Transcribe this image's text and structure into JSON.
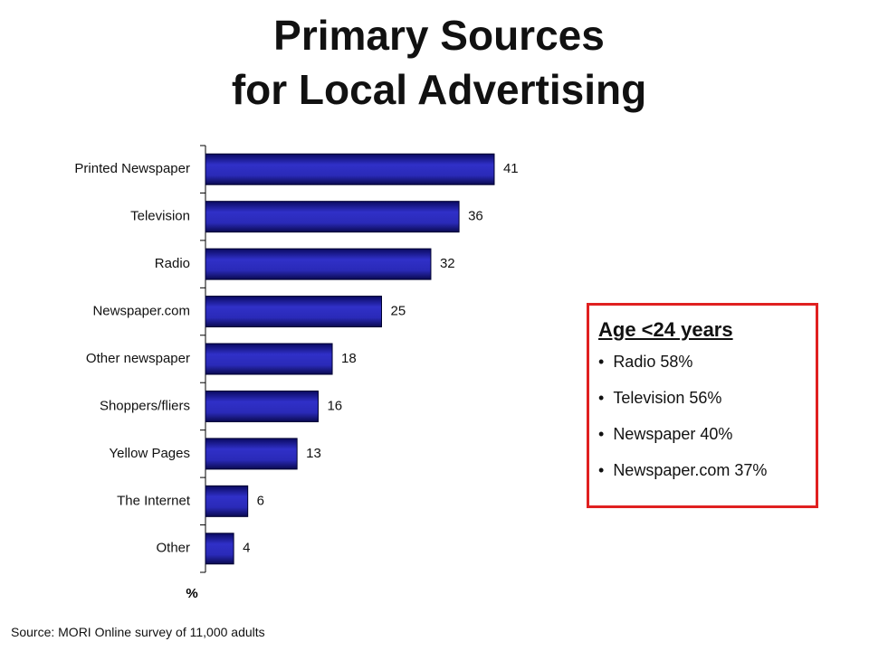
{
  "chart_data": {
    "type": "barh",
    "title": "Primary Sources",
    "subtitle": "for Local Advertising",
    "categories": [
      "Printed Newspaper",
      "Television",
      "Radio",
      "Newspaper.com",
      "Other newspaper",
      "Shoppers/fliers",
      "Yellow Pages",
      "The Internet",
      "Other"
    ],
    "values": [
      41,
      36,
      32,
      25,
      18,
      16,
      13,
      6,
      4
    ],
    "color": "#2424a8",
    "xlim": [
      0,
      50
    ],
    "x_label": "%",
    "source": "Source: MORI Online survey of 11,000 adults",
    "annotation": {
      "title": "Age <24 years",
      "items": [
        "Radio 58%",
        "Television 56%",
        "Newspaper 40%",
        "Newspaper.com 37%"
      ]
    }
  }
}
